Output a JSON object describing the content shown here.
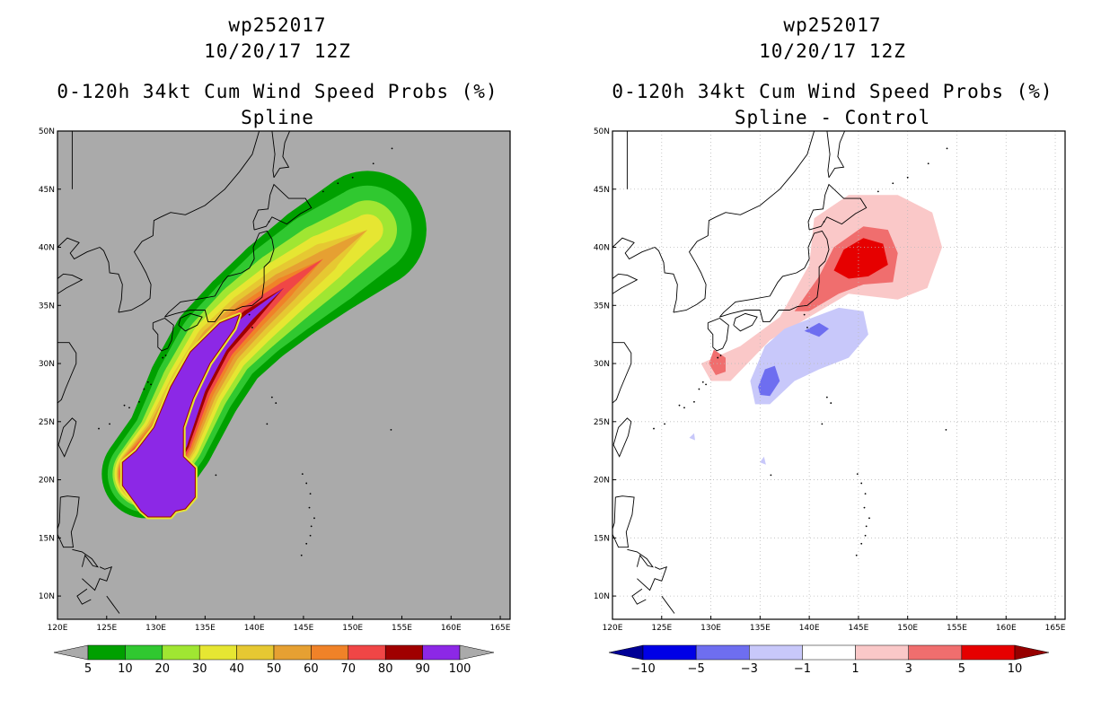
{
  "chart_data": [
    {
      "type": "heatmap",
      "name": "spline",
      "title_lines": [
        "wp252017",
        "10/20/17 12Z",
        "0-120h 34kt Cum Wind Speed Probs (%)",
        "Spline"
      ],
      "storm_id": "wp252017",
      "valid": "10/20/17 12Z",
      "field": "0-120h 34kt Cum Wind Speed Probs (%)",
      "subtitle": "Spline",
      "xlim": [
        120,
        166
      ],
      "ylim": [
        8,
        50
      ],
      "xticks": [
        120,
        125,
        130,
        135,
        140,
        145,
        150,
        155,
        160,
        165
      ],
      "xtick_labels": [
        "120E",
        "125E",
        "130E",
        "135E",
        "140E",
        "145E",
        "150E",
        "155E",
        "160E",
        "165E"
      ],
      "yticks": [
        10,
        15,
        20,
        25,
        30,
        35,
        40,
        45,
        50
      ],
      "ytick_labels": [
        "10N",
        "15N",
        "20N",
        "25N",
        "30N",
        "35N",
        "40N",
        "45N",
        "50N"
      ],
      "background": "#aaaaaa",
      "grid": false,
      "colorbar": {
        "levels": [
          "5",
          "10",
          "20",
          "30",
          "40",
          "50",
          "60",
          "70",
          "80",
          "90",
          "100"
        ],
        "colors": [
          "#00a000",
          "#30c830",
          "#a0e632",
          "#e6e632",
          "#e6c832",
          "#e6a032",
          "#f08228",
          "#f04646",
          "#a00000",
          "#8c28e6"
        ],
        "under_color": "#aaaaaa",
        "over_color": "#aaaaaa"
      },
      "track": [
        [
          129.0,
          20.5
        ],
        [
          131.5,
          23.5
        ],
        [
          134.0,
          28.0
        ],
        [
          136.5,
          31.5
        ],
        [
          139.5,
          34.0
        ],
        [
          143.0,
          36.5
        ],
        [
          147.0,
          39.0
        ],
        [
          151.5,
          41.5
        ]
      ],
      "contours": [
        {
          "level": 5,
          "widths": [
            4.5,
            4.5,
            4.8,
            5.0,
            5.2,
            5.5,
            5.8,
            6.0
          ]
        },
        {
          "level": 10,
          "widths": [
            3.9,
            3.9,
            4.1,
            4.3,
            4.5,
            4.8,
            4.9,
            4.5
          ]
        },
        {
          "level": 20,
          "widths": [
            3.4,
            3.4,
            3.5,
            3.6,
            3.8,
            3.8,
            3.6,
            3.0
          ]
        },
        {
          "level": 30,
          "widths": [
            3.2,
            3.1,
            3.0,
            3.1,
            3.1,
            2.9,
            2.5,
            1.6
          ]
        },
        {
          "level": 40,
          "widths": [
            3.0,
            2.8,
            2.6,
            2.6,
            2.5,
            2.2,
            1.6,
            0.0
          ]
        },
        {
          "level": 50,
          "widths": [
            2.9,
            2.6,
            2.3,
            2.2,
            2.0,
            1.6,
            0.8,
            0.0
          ]
        },
        {
          "level": 60,
          "widths": [
            2.8,
            2.4,
            2.0,
            1.8,
            1.6,
            1.1,
            0.0,
            0.0
          ]
        },
        {
          "level": 70,
          "widths": [
            2.7,
            2.2,
            1.7,
            1.5,
            1.2,
            0.6,
            0.0,
            0.0
          ]
        },
        {
          "level": 80,
          "widths": [
            2.6,
            2.0,
            1.4,
            1.1,
            0.8,
            0.0,
            0.0,
            0.0
          ]
        },
        {
          "level": 90,
          "widths": [
            2.5,
            1.8,
            1.1,
            0.8,
            0.4,
            0.0,
            0.0,
            0.0
          ]
        }
      ],
      "box_100": [
        [
          126.6,
          21.5
        ],
        [
          128.0,
          22.5
        ],
        [
          129.8,
          24.5
        ],
        [
          131.5,
          28.0
        ],
        [
          133.5,
          31.0
        ],
        [
          136.5,
          33.5
        ],
        [
          138.5,
          34.2
        ],
        [
          138.0,
          33.0
        ],
        [
          135.5,
          30.0
        ],
        [
          133.8,
          27.0
        ],
        [
          132.8,
          24.5
        ],
        [
          132.8,
          22.0
        ],
        [
          134.0,
          21.0
        ],
        [
          134.0,
          18.5
        ],
        [
          133.0,
          17.5
        ],
        [
          132.0,
          17.3
        ],
        [
          131.5,
          16.8
        ],
        [
          129.2,
          16.8
        ],
        [
          128.5,
          17.3
        ],
        [
          126.6,
          19.5
        ]
      ]
    },
    {
      "type": "heatmap",
      "name": "difference",
      "title_lines": [
        "wp252017",
        "10/20/17 12Z",
        "0-120h 34kt Cum Wind Speed Probs (%)",
        "Spline - Control"
      ],
      "storm_id": "wp252017",
      "valid": "10/20/17 12Z",
      "field": "0-120h 34kt Cum Wind Speed Probs (%)",
      "subtitle": "Spline - Control",
      "xlim": [
        120,
        166
      ],
      "ylim": [
        8,
        50
      ],
      "xticks": [
        120,
        125,
        130,
        135,
        140,
        145,
        150,
        155,
        160,
        165
      ],
      "xtick_labels": [
        "120E",
        "125E",
        "130E",
        "135E",
        "140E",
        "145E",
        "150E",
        "155E",
        "160E",
        "165E"
      ],
      "yticks": [
        10,
        15,
        20,
        25,
        30,
        35,
        40,
        45,
        50
      ],
      "ytick_labels": [
        "10N",
        "15N",
        "20N",
        "25N",
        "30N",
        "35N",
        "40N",
        "45N",
        "50N"
      ],
      "background": "#ffffff",
      "grid": true,
      "colorbar": {
        "levels": [
          "-10",
          "-5",
          "-3",
          "-1",
          "1",
          "3",
          "5",
          "10"
        ],
        "colors": [
          "#0000e6",
          "#6e6ef0",
          "#c8c8fa",
          "#ffffff",
          "#fac8c8",
          "#f06e6e",
          "#e60000"
        ],
        "under_color": "#000096",
        "over_color": "#960000"
      },
      "regions": [
        {
          "value": "1 to 3",
          "color": "#fac8c8",
          "polygon": [
            [
              133.0,
              31.5
            ],
            [
              137.0,
              34.0
            ],
            [
              140.0,
              38.5
            ],
            [
              140.5,
              42.5
            ],
            [
              144.0,
              44.5
            ],
            [
              149.0,
              44.5
            ],
            [
              152.5,
              43.0
            ],
            [
              153.5,
              40.0
            ],
            [
              152.0,
              36.5
            ],
            [
              149.0,
              35.5
            ],
            [
              144.0,
              36.0
            ],
            [
              140.0,
              34.0
            ],
            [
              136.0,
              32.0
            ],
            [
              132.0,
              28.5
            ],
            [
              130.0,
              28.5
            ],
            [
              129.0,
              30.0
            ]
          ]
        },
        {
          "value": "3 to 5",
          "color": "#f06e6e",
          "polygon": [
            [
              138.5,
              34.5
            ],
            [
              141.0,
              37.5
            ],
            [
              142.5,
              40.0
            ],
            [
              145.5,
              41.8
            ],
            [
              148.0,
              41.5
            ],
            [
              149.0,
              39.5
            ],
            [
              148.5,
              37.0
            ],
            [
              145.5,
              36.8
            ],
            [
              143.0,
              36.0
            ],
            [
              140.0,
              34.5
            ]
          ]
        },
        {
          "value": "3 to 5",
          "color": "#f06e6e",
          "polygon": [
            [
              130.3,
              31.2
            ],
            [
              131.5,
              30.5
            ],
            [
              131.5,
              29.3
            ],
            [
              130.5,
              29.0
            ],
            [
              129.8,
              30.0
            ]
          ]
        },
        {
          "value": "5 to 10",
          "color": "#e60000",
          "polygon": [
            [
              142.5,
              38.0
            ],
            [
              143.5,
              39.8
            ],
            [
              145.5,
              40.8
            ],
            [
              147.5,
              40.3
            ],
            [
              148.0,
              38.5
            ],
            [
              146.0,
              37.5
            ],
            [
              144.0,
              37.3
            ]
          ]
        },
        {
          "value": "-3 to -1",
          "color": "#c8c8fa",
          "polygon": [
            [
              134.0,
              28.5
            ],
            [
              135.5,
              31.5
            ],
            [
              137.5,
              33.0
            ],
            [
              140.5,
              34.0
            ],
            [
              143.0,
              34.8
            ],
            [
              145.5,
              34.5
            ],
            [
              146.0,
              32.5
            ],
            [
              144.0,
              30.5
            ],
            [
              141.0,
              29.5
            ],
            [
              138.5,
              28.5
            ],
            [
              136.0,
              26.5
            ],
            [
              134.5,
              26.5
            ]
          ]
        },
        {
          "value": "-5 to -3",
          "color": "#6e6ef0",
          "polygon": [
            [
              134.8,
              28.0
            ],
            [
              135.5,
              29.5
            ],
            [
              136.5,
              29.8
            ],
            [
              137.0,
              28.5
            ],
            [
              136.0,
              27.2
            ],
            [
              135.0,
              27.3
            ]
          ]
        },
        {
          "value": "-5 to -3",
          "color": "#6e6ef0",
          "polygon": [
            [
              139.5,
              32.8
            ],
            [
              141.0,
              33.5
            ],
            [
              142.0,
              33.0
            ],
            [
              141.0,
              32.3
            ]
          ]
        },
        {
          "value": "-3 to -1",
          "color": "#c8c8fa",
          "polygon": [
            [
              135.0,
              21.5
            ],
            [
              135.4,
              22.0
            ],
            [
              135.6,
              21.3
            ]
          ]
        },
        {
          "value": "-3 to -1",
          "color": "#c8c8fa",
          "polygon": [
            [
              127.8,
              23.6
            ],
            [
              128.3,
              24.0
            ],
            [
              128.4,
              23.4
            ]
          ]
        }
      ]
    }
  ]
}
